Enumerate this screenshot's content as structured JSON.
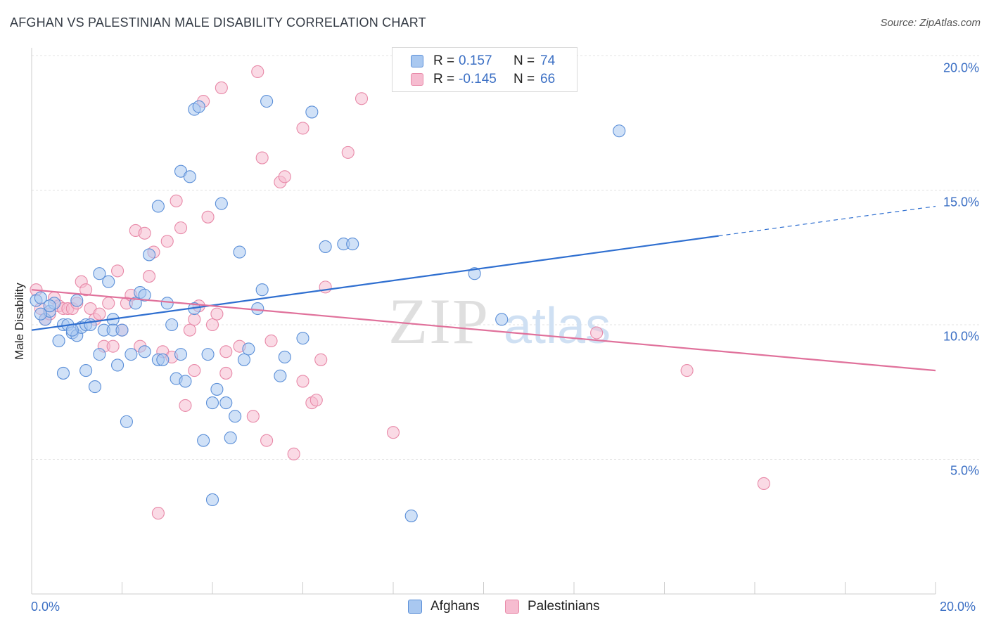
{
  "header": {
    "title": "AFGHAN VS PALESTINIAN MALE DISABILITY CORRELATION CHART",
    "source": "Source: ZipAtlas.com"
  },
  "legend": {
    "afghans": {
      "r_label": "R =",
      "r_value": "0.157",
      "n_label": "N =",
      "n_value": "74"
    },
    "palestinians": {
      "r_label": "R =",
      "r_value": "-0.145",
      "n_label": "N =",
      "n_value": "66"
    }
  },
  "bottom_legend": {
    "afghans": "Afghans",
    "palestinians": "Palestinians"
  },
  "watermark": {
    "zip": "ZIP",
    "atlas": "atlas"
  },
  "colors": {
    "afghans_fill": "#a9c8f0",
    "afghans_stroke": "#5b8fd8",
    "afghans_line": "#2f6fd0",
    "palestinians_fill": "#f6bcd0",
    "palestinians_stroke": "#e889a8",
    "palestinians_line": "#e0719b",
    "tick_text": "#3b6fc4"
  },
  "chart_data": {
    "type": "scatter",
    "title": "AFGHAN VS PALESTINIAN MALE DISABILITY CORRELATION CHART",
    "xlabel": "",
    "ylabel": "Male Disability",
    "xlim": [
      0,
      20
    ],
    "ylim": [
      0,
      20
    ],
    "x_tick_labels": [
      "0.0%",
      "20.0%"
    ],
    "y_tick_labels": [
      "5.0%",
      "10.0%",
      "15.0%",
      "20.0%"
    ],
    "y_ticks": [
      5,
      10,
      15,
      20
    ],
    "grid": true,
    "series": [
      {
        "name": "Afghans",
        "r": 0.157,
        "n": 74,
        "trend": {
          "x0": 0,
          "y0": 9.8,
          "x1": 15.2,
          "y1": 13.3,
          "dash_to_x": 20,
          "dash_to_y": 14.4
        },
        "points": [
          [
            0.1,
            10.9
          ],
          [
            0.2,
            11.0
          ],
          [
            0.3,
            10.2
          ],
          [
            0.4,
            10.5
          ],
          [
            0.5,
            10.8
          ],
          [
            0.6,
            9.4
          ],
          [
            0.7,
            10.0
          ],
          [
            0.7,
            8.2
          ],
          [
            0.8,
            10.0
          ],
          [
            0.9,
            9.7
          ],
          [
            1.0,
            9.6
          ],
          [
            1.0,
            10.9
          ],
          [
            1.1,
            9.9
          ],
          [
            1.2,
            10.0
          ],
          [
            1.2,
            8.3
          ],
          [
            1.3,
            10.0
          ],
          [
            1.4,
            7.7
          ],
          [
            1.5,
            11.9
          ],
          [
            1.5,
            8.9
          ],
          [
            1.6,
            9.8
          ],
          [
            1.7,
            11.6
          ],
          [
            1.8,
            10.2
          ],
          [
            1.8,
            9.8
          ],
          [
            1.9,
            8.5
          ],
          [
            2.0,
            9.8
          ],
          [
            2.1,
            6.4
          ],
          [
            2.2,
            8.9
          ],
          [
            2.3,
            10.8
          ],
          [
            2.4,
            11.2
          ],
          [
            2.5,
            11.1
          ],
          [
            2.5,
            9.0
          ],
          [
            2.6,
            12.6
          ],
          [
            2.8,
            14.4
          ],
          [
            2.8,
            8.7
          ],
          [
            2.9,
            8.7
          ],
          [
            3.0,
            10.8
          ],
          [
            3.1,
            10.0
          ],
          [
            3.2,
            8.0
          ],
          [
            3.3,
            15.7
          ],
          [
            3.3,
            8.9
          ],
          [
            3.4,
            7.9
          ],
          [
            3.5,
            15.5
          ],
          [
            3.6,
            10.6
          ],
          [
            3.6,
            18.0
          ],
          [
            3.7,
            18.1
          ],
          [
            3.8,
            5.7
          ],
          [
            3.9,
            8.9
          ],
          [
            4.0,
            3.5
          ],
          [
            4.0,
            7.1
          ],
          [
            4.1,
            7.6
          ],
          [
            4.2,
            14.5
          ],
          [
            4.3,
            7.1
          ],
          [
            4.4,
            5.8
          ],
          [
            4.5,
            6.6
          ],
          [
            4.6,
            12.7
          ],
          [
            4.7,
            8.7
          ],
          [
            4.8,
            9.1
          ],
          [
            5.0,
            10.6
          ],
          [
            5.1,
            11.3
          ],
          [
            5.2,
            18.3
          ],
          [
            5.5,
            8.1
          ],
          [
            5.6,
            8.8
          ],
          [
            6.0,
            9.5
          ],
          [
            6.2,
            17.9
          ],
          [
            6.5,
            12.9
          ],
          [
            6.9,
            13.0
          ],
          [
            7.1,
            13.0
          ],
          [
            8.4,
            2.9
          ],
          [
            9.8,
            11.9
          ],
          [
            10.4,
            10.2
          ],
          [
            13.0,
            17.2
          ],
          [
            0.2,
            10.4
          ],
          [
            0.4,
            10.7
          ],
          [
            0.9,
            9.8
          ]
        ]
      },
      {
        "name": "Palestinians",
        "r": -0.145,
        "n": 66,
        "trend": {
          "x0": 0,
          "y0": 11.3,
          "x1": 20,
          "y1": 8.3
        },
        "points": [
          [
            0.1,
            11.3
          ],
          [
            0.2,
            10.6
          ],
          [
            0.3,
            10.2
          ],
          [
            0.4,
            10.4
          ],
          [
            0.5,
            11.0
          ],
          [
            0.6,
            10.7
          ],
          [
            0.7,
            10.6
          ],
          [
            0.8,
            10.6
          ],
          [
            0.9,
            10.6
          ],
          [
            1.0,
            10.8
          ],
          [
            1.1,
            11.6
          ],
          [
            1.2,
            11.3
          ],
          [
            1.3,
            10.6
          ],
          [
            1.4,
            10.2
          ],
          [
            1.5,
            10.4
          ],
          [
            1.6,
            9.2
          ],
          [
            1.7,
            10.8
          ],
          [
            1.8,
            9.2
          ],
          [
            1.9,
            12.0
          ],
          [
            2.0,
            9.8
          ],
          [
            2.1,
            10.8
          ],
          [
            2.2,
            11.1
          ],
          [
            2.3,
            13.5
          ],
          [
            2.4,
            9.2
          ],
          [
            2.5,
            13.4
          ],
          [
            2.6,
            11.8
          ],
          [
            2.7,
            12.7
          ],
          [
            2.8,
            3.0
          ],
          [
            2.9,
            9.0
          ],
          [
            3.0,
            13.1
          ],
          [
            3.1,
            8.8
          ],
          [
            3.2,
            14.6
          ],
          [
            3.3,
            13.6
          ],
          [
            3.4,
            7.0
          ],
          [
            3.5,
            9.8
          ],
          [
            3.6,
            10.2
          ],
          [
            3.6,
            8.3
          ],
          [
            3.7,
            10.7
          ],
          [
            3.8,
            18.3
          ],
          [
            3.9,
            14.0
          ],
          [
            4.0,
            10.0
          ],
          [
            4.1,
            10.4
          ],
          [
            4.2,
            18.8
          ],
          [
            4.3,
            9.0
          ],
          [
            4.3,
            8.2
          ],
          [
            4.6,
            9.2
          ],
          [
            4.9,
            6.6
          ],
          [
            5.0,
            19.4
          ],
          [
            5.1,
            16.2
          ],
          [
            5.2,
            5.7
          ],
          [
            5.3,
            9.4
          ],
          [
            5.5,
            15.3
          ],
          [
            5.6,
            15.5
          ],
          [
            5.8,
            5.2
          ],
          [
            6.0,
            17.3
          ],
          [
            6.0,
            7.9
          ],
          [
            6.2,
            7.1
          ],
          [
            6.3,
            7.2
          ],
          [
            6.4,
            8.7
          ],
          [
            6.5,
            11.4
          ],
          [
            7.0,
            16.4
          ],
          [
            7.3,
            18.4
          ],
          [
            8.0,
            6.0
          ],
          [
            12.5,
            9.7
          ],
          [
            14.5,
            8.3
          ],
          [
            16.2,
            4.1
          ]
        ]
      }
    ]
  }
}
